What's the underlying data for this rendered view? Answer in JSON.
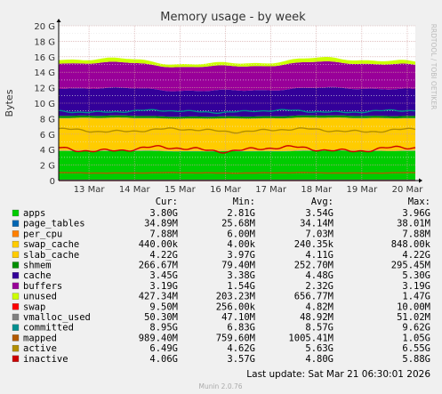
{
  "chart_data": {
    "type": "area",
    "title": "Memory usage - by week",
    "ylabel": "Bytes",
    "watermark": "RRDTOOL / TOBI OETIKER",
    "ylim": [
      0,
      20
    ],
    "y_unit": "G",
    "y_ticks": [
      "0",
      "2 G",
      "4 G",
      "6 G",
      "8 G",
      "10 G",
      "12 G",
      "14 G",
      "16 G",
      "18 G",
      "20 G"
    ],
    "x_ticks": [
      "13 Mar",
      "14 Mar",
      "15 Mar",
      "16 Mar",
      "17 Mar",
      "18 Mar",
      "19 Mar",
      "20 Mar"
    ],
    "grid": true,
    "stack_order": [
      "apps",
      "page_tables",
      "per_cpu",
      "swap_cache",
      "slab_cache",
      "shmem",
      "cache",
      "buffers",
      "unused"
    ],
    "line_series": [
      "swap",
      "vmalloc_used",
      "committed",
      "mapped",
      "active",
      "inactive"
    ],
    "columns": [
      "Cur:",
      "Min:",
      "Avg:",
      "Max:"
    ],
    "series": [
      {
        "name": "apps",
        "color": "#00cc00",
        "cur": "3.80G",
        "min": "2.81G",
        "avg": "3.54G",
        "max": "3.96G",
        "v": 3.8
      },
      {
        "name": "page_tables",
        "color": "#0066b3",
        "cur": "34.89M",
        "min": "25.68M",
        "avg": "34.14M",
        "max": "38.01M",
        "v": 0.035
      },
      {
        "name": "per_cpu",
        "color": "#ff8000",
        "cur": "7.88M",
        "min": "6.00M",
        "avg": "7.03M",
        "max": "7.88M",
        "v": 0.008
      },
      {
        "name": "swap_cache",
        "color": "#ffcc00",
        "cur": "440.00k",
        "min": "4.00k",
        "avg": "240.35k",
        "max": "848.00k",
        "v": 0.0004
      },
      {
        "name": "slab_cache",
        "color": "#ffcc00",
        "cur": "4.22G",
        "min": "3.97G",
        "avg": "4.11G",
        "max": "4.22G",
        "v": 4.22
      },
      {
        "name": "shmem",
        "color": "#008f00",
        "cur": "266.67M",
        "min": "79.40M",
        "avg": "252.70M",
        "max": "295.45M",
        "v": 0.27
      },
      {
        "name": "cache",
        "color": "#330099",
        "cur": "3.45G",
        "min": "3.38G",
        "avg": "4.48G",
        "max": "5.30G",
        "v": 3.45
      },
      {
        "name": "buffers",
        "color": "#990099",
        "cur": "3.19G",
        "min": "1.54G",
        "avg": "2.32G",
        "max": "3.19G",
        "v": 3.19
      },
      {
        "name": "unused",
        "color": "#ccff00",
        "cur": "427.34M",
        "min": "203.23M",
        "avg": "656.77M",
        "max": "1.47G",
        "v": 0.43
      },
      {
        "name": "swap",
        "color": "#ff0000",
        "cur": "9.50M",
        "min": "256.00k",
        "avg": "4.82M",
        "max": "10.00M",
        "v": 0.01
      },
      {
        "name": "vmalloc_used",
        "color": "#808080",
        "cur": "50.30M",
        "min": "47.10M",
        "avg": "48.92M",
        "max": "51.02M",
        "v": 0.05
      },
      {
        "name": "committed",
        "color": "#008f8f",
        "cur": "8.95G",
        "min": "6.83G",
        "avg": "8.57G",
        "max": "9.62G",
        "v": 8.95
      },
      {
        "name": "mapped",
        "color": "#b35a00",
        "cur": "989.40M",
        "min": "759.60M",
        "avg": "1005.41M",
        "max": "1.05G",
        "v": 0.99
      },
      {
        "name": "active",
        "color": "#b38f00",
        "cur": "6.49G",
        "min": "4.62G",
        "avg": "5.63G",
        "max": "6.55G",
        "v": 6.49
      },
      {
        "name": "inactive",
        "color": "#cc0000",
        "cur": "4.06G",
        "min": "3.57G",
        "avg": "4.80G",
        "max": "5.88G",
        "v": 4.06
      }
    ]
  },
  "footer": {
    "last_update": "Last update: Sat Mar 21 06:30:01 2026",
    "version": "Munin 2.0.76"
  }
}
